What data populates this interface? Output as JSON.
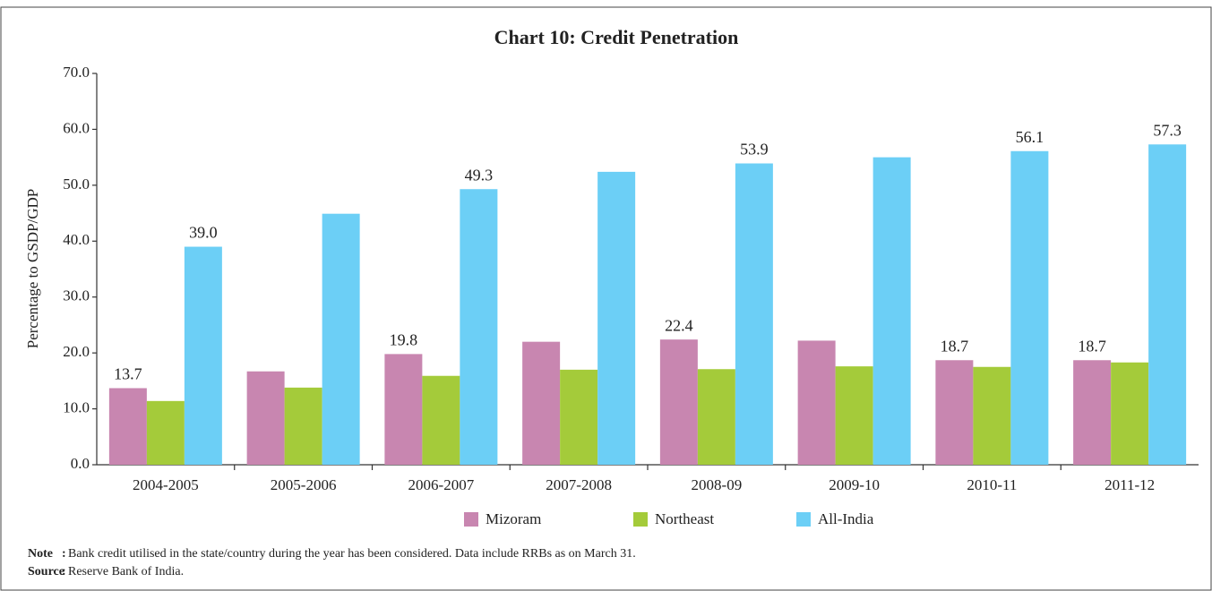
{
  "chart_data": {
    "type": "bar",
    "title": "Chart 10: Credit Penetration",
    "ylabel": "Percentage to GSDP/GDP",
    "categories": [
      "2004-2005",
      "2005-2006",
      "2006-2007",
      "2007-2008",
      "2008-09",
      "2009-10",
      "2010-11",
      "2011-12"
    ],
    "series": [
      {
        "name": "Mizoram",
        "color": "#c886b0",
        "values": [
          13.7,
          16.7,
          19.8,
          22.0,
          22.4,
          22.2,
          18.7,
          18.7
        ],
        "value_labels": [
          "13.7",
          null,
          "19.8",
          null,
          "22.4",
          null,
          "18.7",
          "18.7"
        ]
      },
      {
        "name": "Northeast",
        "color": "#a4cb3a",
        "values": [
          11.4,
          13.8,
          15.9,
          17.0,
          17.1,
          17.6,
          17.5,
          18.3
        ],
        "value_labels": [
          null,
          null,
          null,
          null,
          null,
          null,
          null,
          null
        ]
      },
      {
        "name": "All-India",
        "color": "#6ccff6",
        "values": [
          39.0,
          44.9,
          49.3,
          52.4,
          53.9,
          55.0,
          56.1,
          57.3
        ],
        "value_labels": [
          "39.0",
          null,
          "49.3",
          null,
          "53.9",
          null,
          "56.1",
          "57.3"
        ]
      }
    ],
    "ylim": [
      0,
      70
    ],
    "yticks": [
      {
        "value": 0,
        "label": "0.0"
      },
      {
        "value": 10,
        "label": "10.0"
      },
      {
        "value": 20,
        "label": "20.0"
      },
      {
        "value": 30,
        "label": "30.0"
      },
      {
        "value": 40,
        "label": "40.0"
      },
      {
        "value": 50,
        "label": "50.0"
      },
      {
        "value": 60,
        "label": "60.0"
      },
      {
        "value": 70,
        "label": "70.0"
      }
    ],
    "grid": false,
    "legend": "bottom",
    "notes": [
      {
        "label": "Note",
        "separator": ":",
        "text": "Bank credit utilised in the state/country during the year has been considered. Data include RRBs as on March 31."
      },
      {
        "label": "Source",
        "separator": ":",
        "text": "Reserve Bank of India."
      }
    ]
  }
}
